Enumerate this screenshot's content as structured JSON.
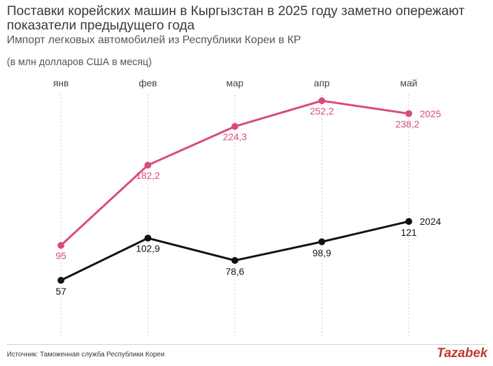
{
  "header": {
    "title": "Поставки корейских машин в Кыргызстан в 2025 году заметно опережают показатели предыдущего года",
    "subtitle": "Импорт легковых автомобилей из Республики Кореи в КР",
    "units": "(в млн долларов США в месяц)"
  },
  "footer": {
    "source": "Источник: Таможенная служба Республики Кореи",
    "logo": "Tazabek"
  },
  "colors": {
    "series_2025": "#d94a7e",
    "series_2024": "#111111",
    "gridline": "#cccccc",
    "axis_text": "#444444"
  },
  "chart_data": {
    "type": "line",
    "title": "Поставки корейских машин в Кыргызстан в 2025 году заметно опережают показатели предыдущего года",
    "subtitle": "Импорт легковых автомобилей из Республики Кореи в КР",
    "ylabel": "(в млн долларов США в месяц)",
    "categories": [
      "янв",
      "фев",
      "мар",
      "апр",
      "май"
    ],
    "ylim": [
      40,
      265
    ],
    "grid": "vertical-dotted",
    "legend": "inline-end-labels",
    "series": [
      {
        "name": "2025",
        "values": [
          95,
          182.2,
          224.3,
          252.2,
          238.2
        ],
        "labels": [
          "95",
          "182,2",
          "224,3",
          "252,2",
          "238,2"
        ]
      },
      {
        "name": "2024",
        "values": [
          57,
          102.9,
          78.6,
          98.9,
          121
        ],
        "labels": [
          "57",
          "102,9",
          "78,6",
          "98,9",
          "121"
        ]
      }
    ]
  }
}
